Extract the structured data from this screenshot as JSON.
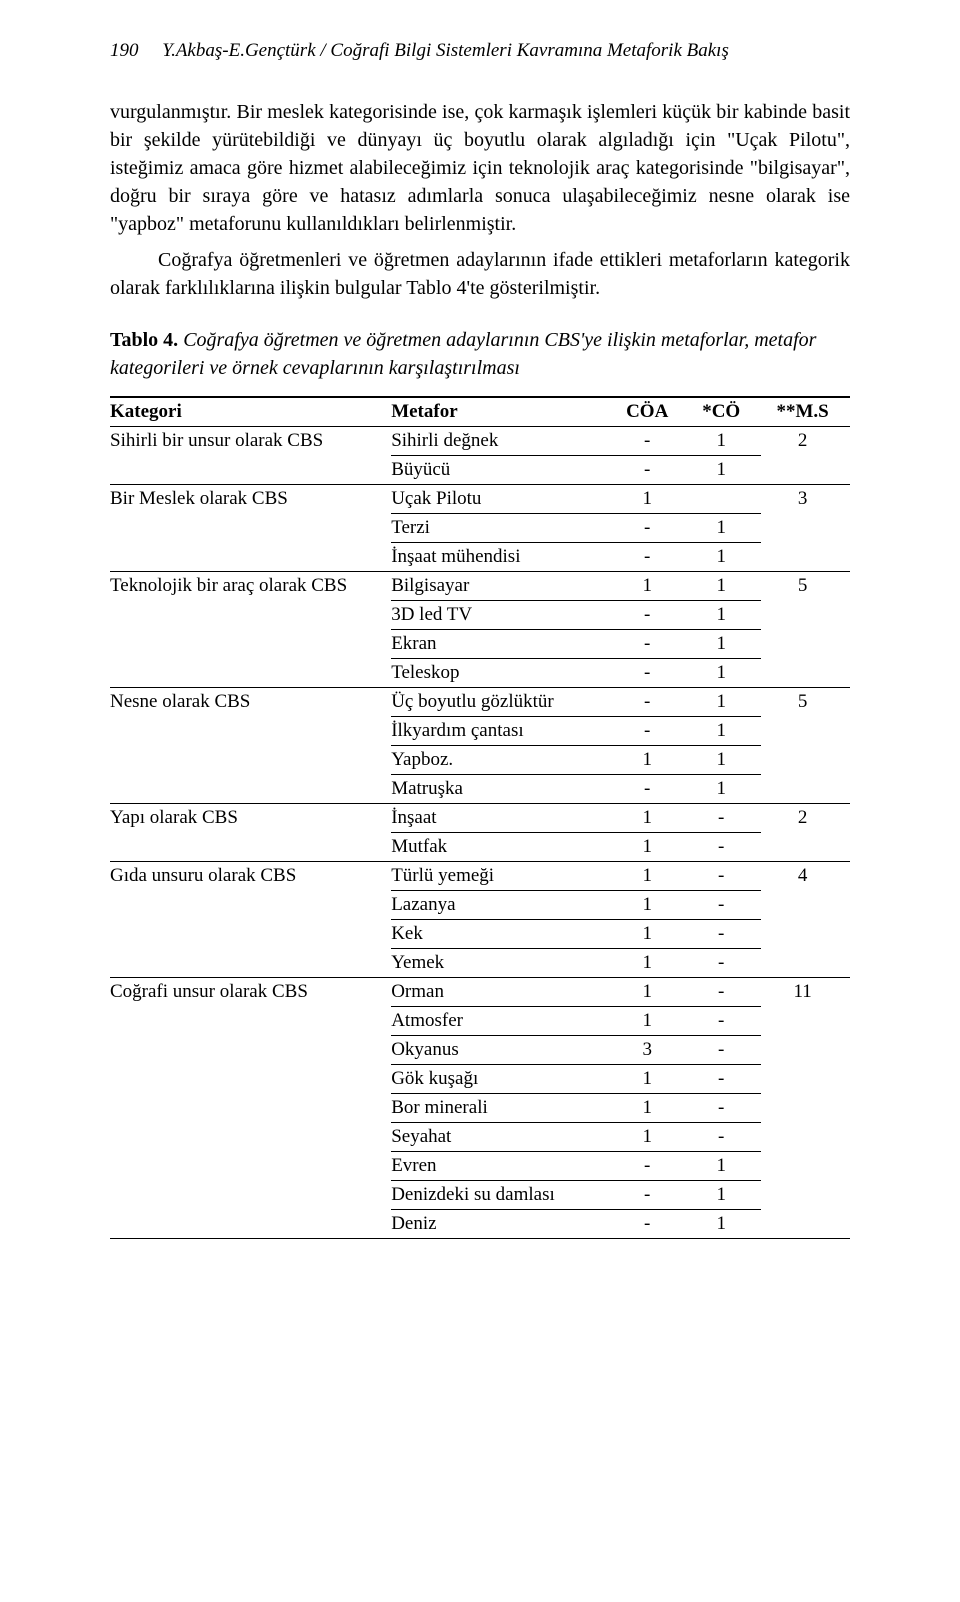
{
  "header": {
    "page_number": "190",
    "running_title": "Y.Akbaş-E.Gençtürk / Coğrafi Bilgi Sistemleri Kavramına Metaforik Bakış"
  },
  "paragraphs": {
    "p1": "vurgulanmıştır. Bir meslek kategorisinde ise, çok karmaşık işlemleri küçük bir kabinde basit bir şekilde yürütebildiği ve dünyayı üç boyutlu olarak algıladığı için \"Uçak Pilotu\", isteğimiz amaca göre hizmet alabileceğimiz için teknolojik araç kategorisinde \"bilgisayar\", doğru bir sıraya göre ve hatasız adımlarla sonuca ulaşabileceğimiz nesne olarak ise \"yapboz\" metaforunu kullanıldıkları belirlenmiştir.",
    "p2a": "Coğrafya öğretmenleri ve öğretmen adaylarının ifade ettikleri metaforların kategorik olarak farklılıklarına ilişkin bulgular Tablo 4'te gösterilmiştir."
  },
  "table_title": {
    "label": "Tablo 4.",
    "caption": " Coğrafya öğretmen ve öğretmen adaylarının CBS'ye ilişkin metaforlar, metafor kategorileri ve örnek cevaplarının karşılaştırılması"
  },
  "table": {
    "headers": {
      "h1": "Kategori",
      "h2": "Metafor",
      "h3": "CÖA",
      "h4": "*CÖ",
      "h5": "**M.S"
    },
    "categories": [
      {
        "name": "Sihirli bir unsur olarak CBS",
        "ms": "2",
        "rows": [
          {
            "metafor": "Sihirli değnek",
            "coa": "-",
            "co": "1"
          },
          {
            "metafor": "Büyücü",
            "coa": "-",
            "co": "1"
          }
        ]
      },
      {
        "name": "Bir Meslek olarak CBS",
        "ms": "3",
        "rows": [
          {
            "metafor": "Uçak Pilotu",
            "coa": "1",
            "co": ""
          },
          {
            "metafor": "Terzi",
            "coa": "-",
            "co": "1"
          },
          {
            "metafor": "İnşaat mühendisi",
            "coa": "-",
            "co": "1"
          }
        ]
      },
      {
        "name": "Teknolojik bir araç olarak CBS",
        "ms": "5",
        "rows": [
          {
            "metafor": "Bilgisayar",
            "coa": "1",
            "co": "1"
          },
          {
            "metafor": "3D led TV",
            "coa": "-",
            "co": "1"
          },
          {
            "metafor": "Ekran",
            "coa": "-",
            "co": "1"
          },
          {
            "metafor": "Teleskop",
            "coa": "-",
            "co": "1"
          }
        ]
      },
      {
        "name": "Nesne olarak CBS",
        "ms": "5",
        "rows": [
          {
            "metafor": "Üç boyutlu gözlüktür",
            "coa": "-",
            "co": "1"
          },
          {
            "metafor": "İlkyardım çantası",
            "coa": "-",
            "co": "1"
          },
          {
            "metafor": "Yapboz.",
            "coa": "1",
            "co": "1"
          },
          {
            "metafor": "Matruşka",
            "coa": "-",
            "co": "1"
          }
        ]
      },
      {
        "name": "Yapı olarak CBS",
        "ms": "2",
        "rows": [
          {
            "metafor": "İnşaat",
            "coa": "1",
            "co": "-"
          },
          {
            "metafor": "Mutfak",
            "coa": "1",
            "co": "-"
          }
        ]
      },
      {
        "name": "Gıda unsuru olarak CBS",
        "ms": "4",
        "rows": [
          {
            "metafor": "Türlü yemeği",
            "coa": "1",
            "co": "-"
          },
          {
            "metafor": "Lazanya",
            "coa": "1",
            "co": "-"
          },
          {
            "metafor": "Kek",
            "coa": "1",
            "co": "-"
          },
          {
            "metafor": "Yemek",
            "coa": "1",
            "co": "-"
          }
        ]
      },
      {
        "name": "Coğrafi unsur olarak CBS",
        "ms": "11",
        "rows": [
          {
            "metafor": "Orman",
            "coa": "1",
            "co": "-"
          },
          {
            "metafor": "Atmosfer",
            "coa": "1",
            "co": "-"
          },
          {
            "metafor": "Okyanus",
            "coa": "3",
            "co": "-"
          },
          {
            "metafor": "Gök kuşağı",
            "coa": "1",
            "co": "-"
          },
          {
            "metafor": "Bor minerali",
            "coa": "1",
            "co": "-"
          },
          {
            "metafor": "Seyahat",
            "coa": "1",
            "co": "-"
          },
          {
            "metafor": "Evren",
            "coa": "-",
            "co": "1"
          },
          {
            "metafor": "Denizdeki su damlası",
            "coa": "-",
            "co": "1"
          },
          {
            "metafor": "Deniz",
            "coa": "-",
            "co": "1"
          }
        ]
      }
    ]
  }
}
